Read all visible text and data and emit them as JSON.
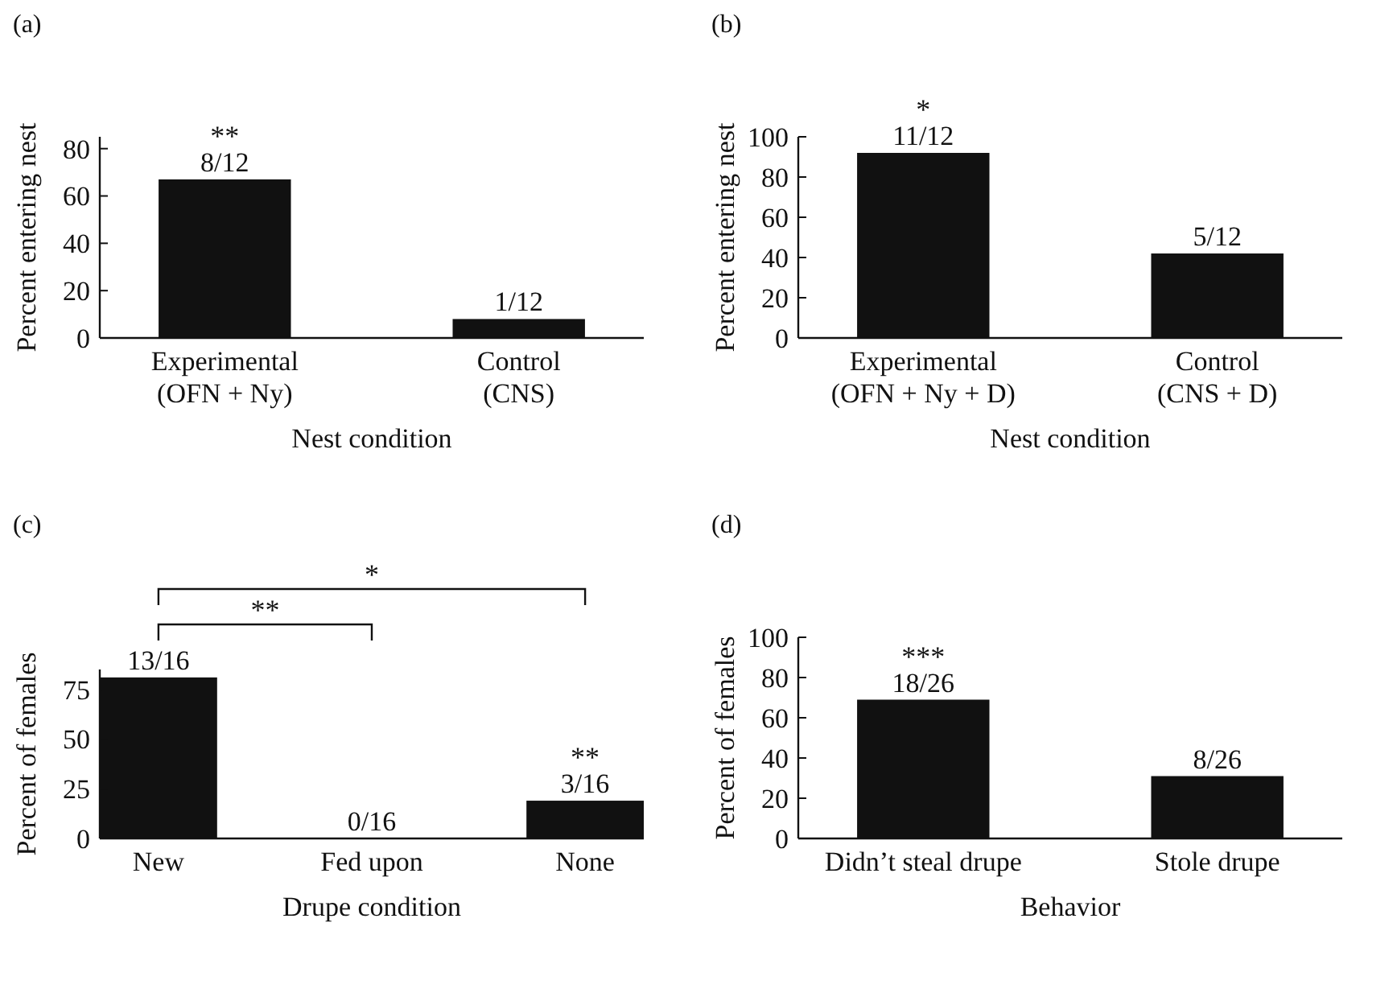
{
  "chart_data": [
    {
      "type": "bar",
      "title": "(a)",
      "categories": [
        "Experimental\n(OFN + Ny)",
        "Control\n(CNS)"
      ],
      "values": [
        67,
        8
      ],
      "color": "#111111",
      "ylim": [
        0,
        85
      ],
      "yticks": [
        0,
        20,
        40,
        60,
        80
      ],
      "xlabel": "Nest condition",
      "ylabel": "Percent entering nest",
      "grid": false,
      "annotations": [
        {
          "text": "8/12",
          "x": "Experimental\n(OFN + Ny)",
          "y": 67
        },
        {
          "text": "**",
          "x": "Experimental\n(OFN + Ny)",
          "y": 67
        },
        {
          "text": "1/12",
          "x": "Control\n(CNS)",
          "y": 8
        }
      ]
    },
    {
      "type": "bar",
      "title": "(b)",
      "categories": [
        "Experimental\n(OFN + Ny + D)",
        "Control\n(CNS + D)"
      ],
      "values": [
        92,
        42
      ],
      "color": "#111111",
      "ylim": [
        0,
        100
      ],
      "yticks": [
        0,
        20,
        40,
        60,
        80,
        100
      ],
      "xlabel": "Nest condition",
      "ylabel": "Percent entering nest",
      "grid": false,
      "annotations": [
        {
          "text": "11/12",
          "x": "Experimental\n(OFN + Ny + D)",
          "y": 92
        },
        {
          "text": "*",
          "x": "Experimental\n(OFN + Ny + D)",
          "y": 92
        },
        {
          "text": "5/12",
          "x": "Control\n(CNS + D)",
          "y": 42
        }
      ]
    },
    {
      "type": "bar",
      "title": "(c)",
      "categories": [
        "New",
        "Fed upon",
        "None"
      ],
      "values": [
        81,
        0,
        19
      ],
      "color": "#111111",
      "ylim": [
        0,
        85
      ],
      "yticks": [
        0,
        25,
        50,
        75
      ],
      "xlabel": "Drupe condition",
      "ylabel": "Percent of females",
      "grid": false,
      "annotations": [
        "**",
        "*",
        {
          "text": "13/16",
          "x": "New",
          "y": 81
        },
        {
          "text": "0/16",
          "x": "Fed upon",
          "y": 0
        },
        {
          "text": "3/16",
          "x": "None",
          "y": 19
        },
        {
          "text": "**",
          "x": "None",
          "y": 19
        }
      ]
    },
    {
      "type": "bar",
      "title": "(d)",
      "categories": [
        "Didn’t steal drupe",
        "Stole drupe"
      ],
      "values": [
        69,
        31
      ],
      "color": "#111111",
      "ylim": [
        0,
        100
      ],
      "yticks": [
        0,
        20,
        40,
        60,
        80,
        100
      ],
      "xlabel": "Behavior",
      "ylabel": "Percent of females",
      "grid": false,
      "annotations": [
        {
          "text": "18/26",
          "x": "Didn’t steal drupe",
          "y": 69
        },
        {
          "text": "***",
          "x": "Didn’t steal drupe",
          "y": 69
        },
        {
          "text": "8/26",
          "x": "Stole drupe",
          "y": 31
        }
      ]
    }
  ]
}
